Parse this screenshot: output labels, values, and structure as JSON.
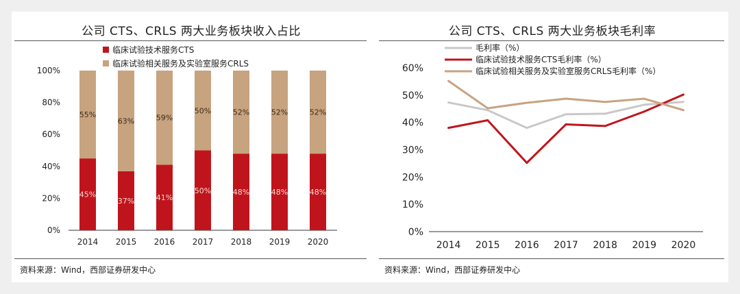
{
  "page": {
    "left_source": "资料来源：Wind，西部证券研发中心",
    "right_source": "资料来源：Wind，西部证券研发中心"
  },
  "colors": {
    "cts": "#c0141c",
    "crls": "#c7a37f",
    "total": "#c8c8c8",
    "axis": "#333333"
  },
  "chart_data": [
    {
      "type": "bar",
      "stacked": true,
      "title": "公司 CTS、CRLS 两大业务板块收入占比",
      "categories": [
        "2014",
        "2015",
        "2016",
        "2017",
        "2018",
        "2019",
        "2020"
      ],
      "series": [
        {
          "name": "临床试验技术服务CTS",
          "values": [
            45,
            37,
            41,
            50,
            48,
            48,
            48
          ],
          "labels": [
            "45%",
            "37%",
            "41%",
            "50%",
            "48%",
            "48%",
            "48%"
          ]
        },
        {
          "name": "临床试验相关服务及实验室服务CRLS",
          "values": [
            55,
            63,
            59,
            50,
            52,
            52,
            52
          ],
          "labels": [
            "55%",
            "63%",
            "59%",
            "50%",
            "52%",
            "52%",
            "52%"
          ]
        }
      ],
      "ylim": [
        0,
        100
      ],
      "yticks": [
        "0%",
        "20%",
        "40%",
        "60%",
        "80%",
        "100%"
      ],
      "legend": "top-left"
    },
    {
      "type": "line",
      "title": "公司 CTS、CRLS 两大业务板块毛利率",
      "categories": [
        "2014",
        "2015",
        "2016",
        "2017",
        "2018",
        "2019",
        "2020"
      ],
      "series": [
        {
          "name": "毛利率（%）",
          "values": [
            47.3,
            44.5,
            38.0,
            43.0,
            43.2,
            46.5,
            47.5
          ]
        },
        {
          "name": "临床试验技术服务CTS毛利率（%）",
          "values": [
            38.0,
            40.8,
            25.2,
            39.3,
            38.7,
            44.0,
            50.2
          ]
        },
        {
          "name": "临床试验相关服务及实验室服务CRLS毛利率（%）",
          "values": [
            55.2,
            45.2,
            47.2,
            48.7,
            47.5,
            48.7,
            44.5
          ]
        }
      ],
      "ylim": [
        0,
        60
      ],
      "yticks": [
        "0%",
        "10%",
        "20%",
        "30%",
        "40%",
        "50%",
        "60%"
      ],
      "legend": "top-left"
    }
  ]
}
